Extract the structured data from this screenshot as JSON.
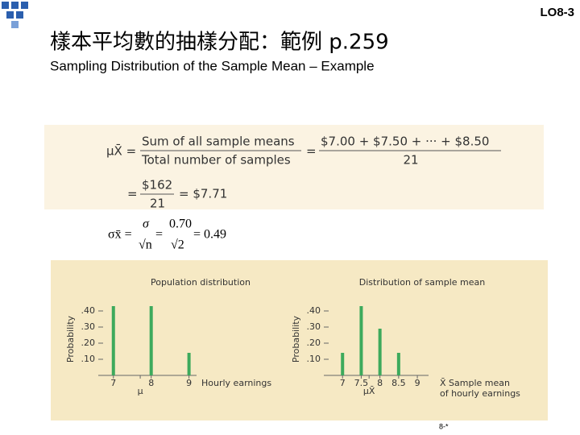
{
  "slide_label": "LO8-3",
  "title": "樣本平均數的抽樣分配：範例 p.259",
  "subtitle": "Sampling Distribution of the Sample Mean – Example",
  "formula": {
    "mean_symbol": "μX̄ =",
    "numerator": "Sum of all sample means",
    "denominator": "Total number of samples",
    "eq": "=",
    "sum": "$7.00 + $7.50 + ··· + $8.50",
    "count": "21",
    "line2_eq": "=",
    "frac_num": "$162",
    "frac_den": "21",
    "result": "= $7.71"
  },
  "sigma_formula": {
    "lhs": "σx̄ =",
    "num1": "σ",
    "den1": "√n",
    "eq": "=",
    "num2": "0.70",
    "den2": "√2",
    "result": "= 0.49"
  },
  "footer": "8-*",
  "chart_data": [
    {
      "type": "bar",
      "title": "Population distribution",
      "ylabel": "Probability",
      "xlabel": "Hourly earnings",
      "x": [
        7,
        8,
        9
      ],
      "values": [
        0.43,
        0.43,
        0.14
      ],
      "color": "#3daa5c",
      "xlim": [
        6.6,
        9.2
      ],
      "ylim": [
        0,
        0.45
      ],
      "xticks": [
        7,
        {
          "value": 7.71,
          "label": "μ"
        },
        8,
        9
      ],
      "yticks": [
        {
          "value": 0.1,
          "label": ".10"
        },
        {
          "value": 0.2,
          "label": ".20"
        },
        {
          "value": 0.3,
          "label": ".30"
        },
        {
          "value": 0.4,
          "label": ".40"
        }
      ]
    },
    {
      "type": "bar",
      "title": "Distribution of sample mean",
      "ylabel": "Probability",
      "xlabel": [
        "X̄  Sample mean",
        "of hourly earnings"
      ],
      "x": [
        7,
        7.5,
        8,
        8.5
      ],
      "values": [
        0.14,
        0.43,
        0.29,
        0.14
      ],
      "color": "#3daa5c",
      "xlim": [
        6.5,
        9.3
      ],
      "ylim": [
        0,
        0.45
      ],
      "xticks": [
        7,
        7.5,
        {
          "value": 7.71,
          "label": "μX̄"
        },
        8,
        8.5,
        9
      ],
      "yticks": [
        {
          "value": 0.1,
          "label": ".10"
        },
        {
          "value": 0.2,
          "label": ".20"
        },
        {
          "value": 0.3,
          "label": ".30"
        },
        {
          "value": 0.4,
          "label": ".40"
        }
      ]
    }
  ]
}
